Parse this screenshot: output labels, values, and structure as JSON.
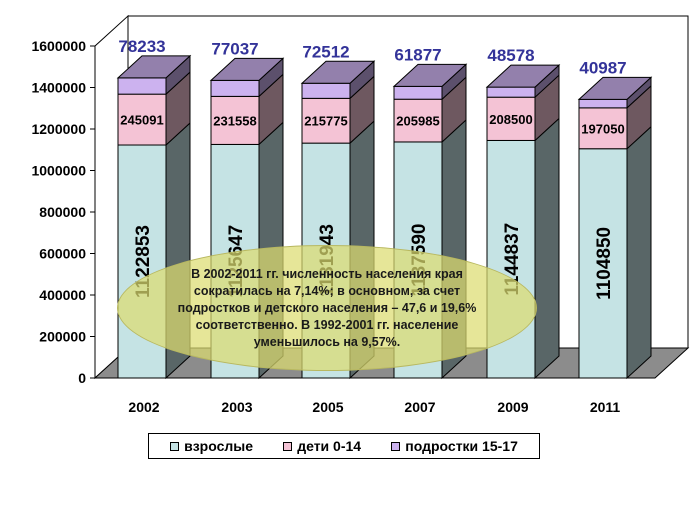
{
  "chart_data": {
    "type": "bar",
    "stacked": true,
    "style": "3d",
    "categories": [
      "2002",
      "2003",
      "2005",
      "2007",
      "2009",
      "2011"
    ],
    "series": [
      {
        "name": "взрослые",
        "values": [
          1122853,
          1125647,
          1131943,
          1137590,
          1144837,
          1104850
        ],
        "color": "#c5e3e4"
      },
      {
        "name": "дети 0-14",
        "values": [
          245091,
          231558,
          215775,
          205985,
          208500,
          197050
        ],
        "color": "#f4c3d5"
      },
      {
        "name": "подростки 15-17",
        "values": [
          78233,
          77037,
          72512,
          61877,
          48578,
          40987
        ],
        "color": "#ccb2ef"
      }
    ],
    "yticks": [
      "0",
      "200000",
      "400000",
      "600000",
      "800000",
      "1000000",
      "1200000",
      "1400000",
      "1600000"
    ],
    "ylim": [
      0,
      1600000
    ],
    "grid": false,
    "legend_position": "bottom",
    "annotation": "В 2002-2011 гг. численность населения края сократилась на 7,14%; в основном, за счет подростков и детского населения – 47,6 и 19,6% соответственно. В 1992-2001 гг. население уменьшилось на 9,57%."
  }
}
